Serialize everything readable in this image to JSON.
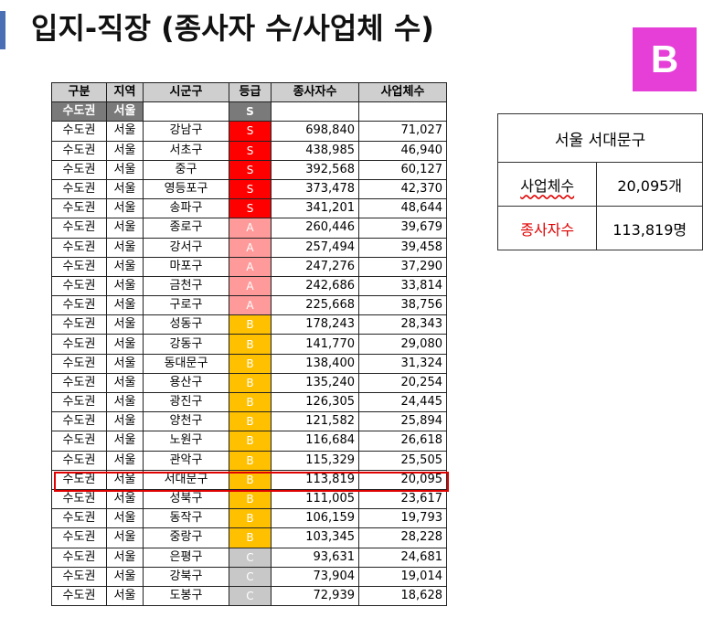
{
  "title": "입지-직장 (종사자 수/사업체 수)",
  "grade_badge": "B",
  "colors": {
    "S": "#ff0000",
    "A": "#ff9a9a",
    "B": "#ffc000",
    "C": "#c8c8c8",
    "badge": "#e53fd8",
    "highlight": "#e00000"
  },
  "table": {
    "headers": [
      "구분",
      "지역",
      "시군구",
      "등급",
      "종사자수",
      "사업체수"
    ],
    "subheader": {
      "region_group": "수도권",
      "region": "서울"
    },
    "rows": [
      {
        "group": "수도권",
        "region": "서울",
        "district": "강남구",
        "grade": "S",
        "employees": "698,840",
        "businesses": "71,027"
      },
      {
        "group": "수도권",
        "region": "서울",
        "district": "서초구",
        "grade": "S",
        "employees": "438,985",
        "businesses": "46,940"
      },
      {
        "group": "수도권",
        "region": "서울",
        "district": "중구",
        "grade": "S",
        "employees": "392,568",
        "businesses": "60,127"
      },
      {
        "group": "수도권",
        "region": "서울",
        "district": "영등포구",
        "grade": "S",
        "employees": "373,478",
        "businesses": "42,370"
      },
      {
        "group": "수도권",
        "region": "서울",
        "district": "송파구",
        "grade": "S",
        "employees": "341,201",
        "businesses": "48,644"
      },
      {
        "group": "수도권",
        "region": "서울",
        "district": "종로구",
        "grade": "A",
        "employees": "260,446",
        "businesses": "39,679"
      },
      {
        "group": "수도권",
        "region": "서울",
        "district": "강서구",
        "grade": "A",
        "employees": "257,494",
        "businesses": "39,458"
      },
      {
        "group": "수도권",
        "region": "서울",
        "district": "마포구",
        "grade": "A",
        "employees": "247,276",
        "businesses": "37,290"
      },
      {
        "group": "수도권",
        "region": "서울",
        "district": "금천구",
        "grade": "A",
        "employees": "242,686",
        "businesses": "33,814"
      },
      {
        "group": "수도권",
        "region": "서울",
        "district": "구로구",
        "grade": "A",
        "employees": "225,668",
        "businesses": "38,756"
      },
      {
        "group": "수도권",
        "region": "서울",
        "district": "성동구",
        "grade": "B",
        "employees": "178,243",
        "businesses": "28,343"
      },
      {
        "group": "수도권",
        "region": "서울",
        "district": "강동구",
        "grade": "B",
        "employees": "141,770",
        "businesses": "29,080"
      },
      {
        "group": "수도권",
        "region": "서울",
        "district": "동대문구",
        "grade": "B",
        "employees": "138,400",
        "businesses": "31,324"
      },
      {
        "group": "수도권",
        "region": "서울",
        "district": "용산구",
        "grade": "B",
        "employees": "135,240",
        "businesses": "20,254"
      },
      {
        "group": "수도권",
        "region": "서울",
        "district": "광진구",
        "grade": "B",
        "employees": "126,305",
        "businesses": "24,445"
      },
      {
        "group": "수도권",
        "region": "서울",
        "district": "양천구",
        "grade": "B",
        "employees": "121,582",
        "businesses": "25,894"
      },
      {
        "group": "수도권",
        "region": "서울",
        "district": "노원구",
        "grade": "B",
        "employees": "116,684",
        "businesses": "26,618"
      },
      {
        "group": "수도권",
        "region": "서울",
        "district": "관악구",
        "grade": "B",
        "employees": "115,329",
        "businesses": "25,505"
      },
      {
        "group": "수도권",
        "region": "서울",
        "district": "서대문구",
        "grade": "B",
        "employees": "113,819",
        "businesses": "20,095"
      },
      {
        "group": "수도권",
        "region": "서울",
        "district": "성북구",
        "grade": "B",
        "employees": "111,005",
        "businesses": "23,617"
      },
      {
        "group": "수도권",
        "region": "서울",
        "district": "동작구",
        "grade": "B",
        "employees": "106,159",
        "businesses": "19,793"
      },
      {
        "group": "수도권",
        "region": "서울",
        "district": "중랑구",
        "grade": "B",
        "employees": "103,345",
        "businesses": "28,228"
      },
      {
        "group": "수도권",
        "region": "서울",
        "district": "은평구",
        "grade": "C",
        "employees": "93,631",
        "businesses": "24,681"
      },
      {
        "group": "수도권",
        "region": "서울",
        "district": "강북구",
        "grade": "C",
        "employees": "73,904",
        "businesses": "19,014"
      },
      {
        "group": "수도권",
        "region": "서울",
        "district": "도봉구",
        "grade": "C",
        "employees": "72,939",
        "businesses": "18,628"
      }
    ]
  },
  "summary": {
    "title": "서울 서대문구",
    "business_label": "사업체수",
    "business_value": "20,095개",
    "employee_label": "종사자수",
    "employee_value": "113,819명"
  }
}
